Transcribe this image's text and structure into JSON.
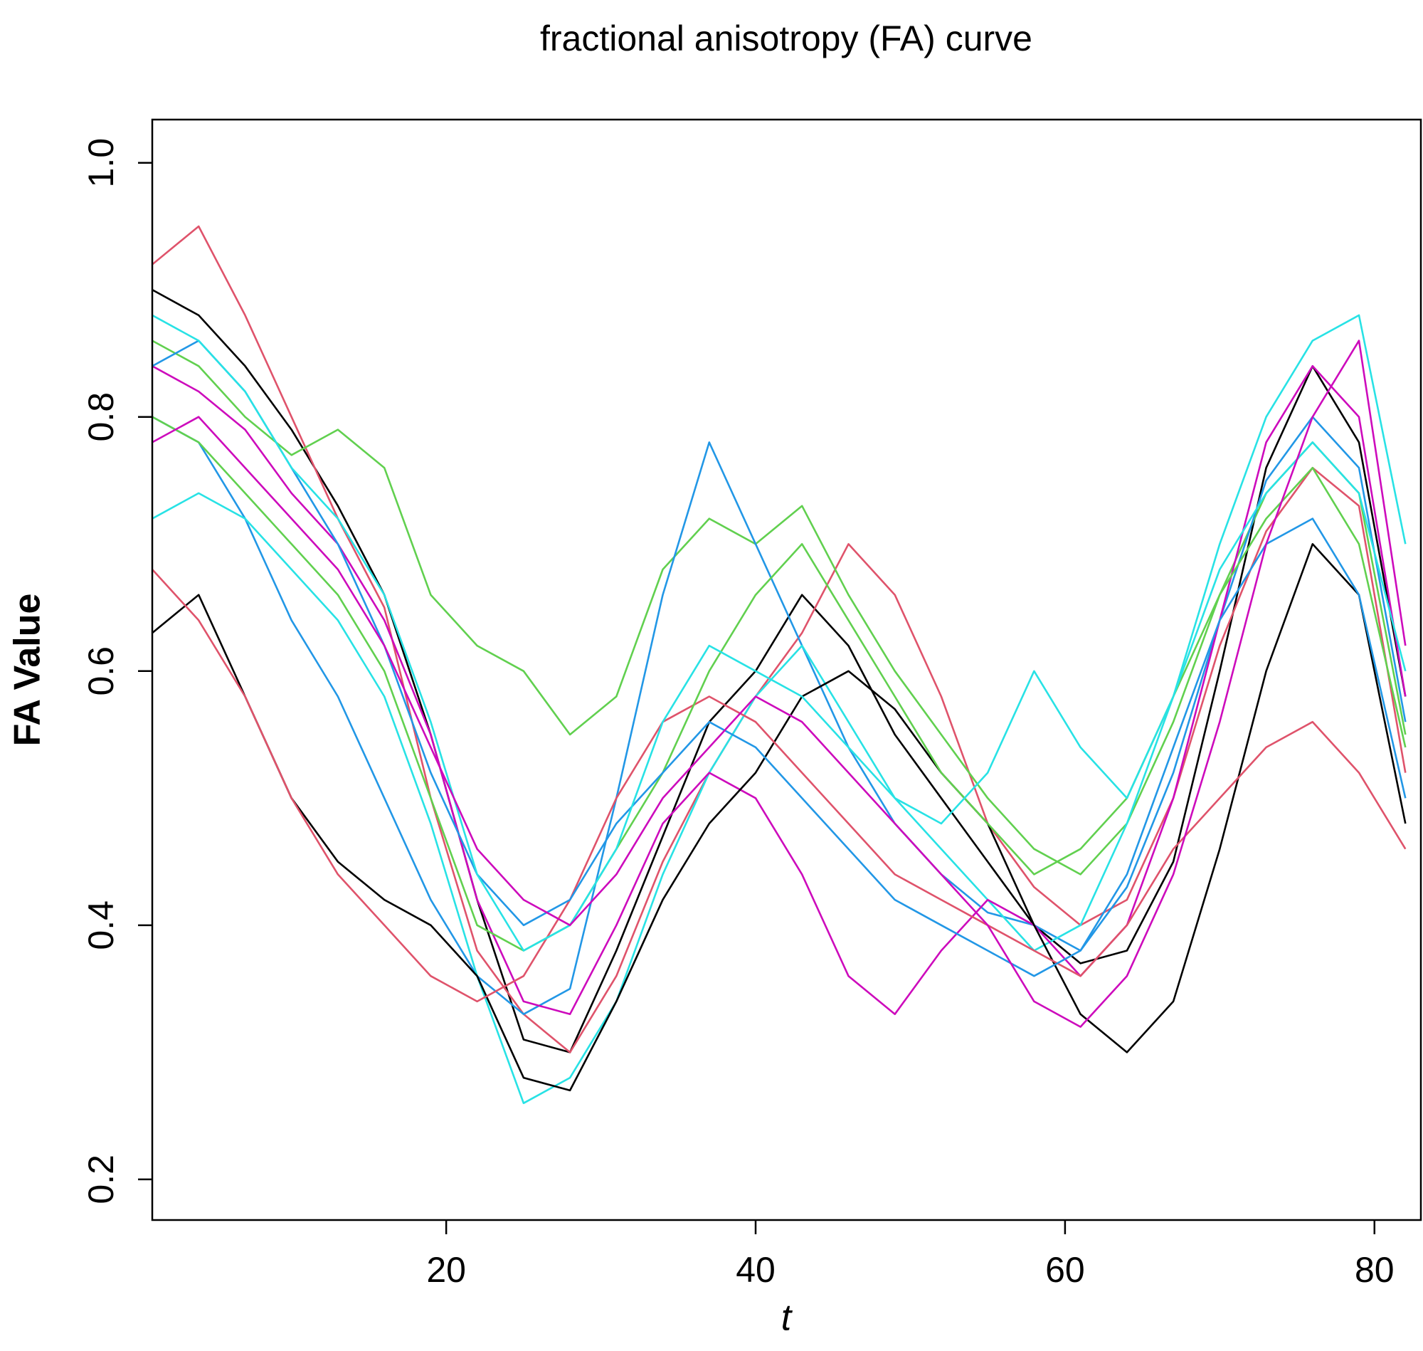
{
  "chart_data": {
    "type": "line",
    "title": "fractional anisotropy (FA) curve",
    "x_label": "t",
    "y_label": "FA Value",
    "x": [
      1,
      4,
      7,
      10,
      13,
      16,
      19,
      22,
      25,
      28,
      31,
      34,
      37,
      40,
      43,
      46,
      49,
      52,
      55,
      58,
      61,
      64,
      67,
      70,
      73,
      76,
      79,
      82
    ],
    "xlim": [
      1,
      83
    ],
    "ylim": [
      0.168,
      1.034
    ],
    "xticks": [
      20,
      40,
      60,
      80
    ],
    "yticks": [
      0.2,
      0.4,
      0.6,
      0.8,
      {
        "value": 1,
        "label": "1.0"
      }
    ],
    "series": [
      {
        "color": "#000000",
        "values": [
          0.9,
          0.88,
          0.84,
          0.79,
          0.73,
          0.66,
          0.55,
          0.42,
          0.31,
          0.3,
          0.38,
          0.47,
          0.56,
          0.6,
          0.66,
          0.62,
          0.55,
          0.5,
          0.45,
          0.4,
          0.37,
          0.38,
          0.45,
          0.6,
          0.76,
          0.84,
          0.78,
          0.58
        ]
      },
      {
        "color": "#DF536B",
        "values": [
          0.92,
          0.95,
          0.88,
          0.8,
          0.72,
          0.65,
          0.5,
          0.38,
          0.33,
          0.3,
          0.36,
          0.45,
          0.52,
          0.58,
          0.63,
          0.7,
          0.66,
          0.58,
          0.48,
          0.43,
          0.4,
          0.42,
          0.5,
          0.62,
          0.71,
          0.76,
          0.73,
          0.52
        ]
      },
      {
        "color": "#61D04F",
        "values": [
          0.86,
          0.84,
          0.8,
          0.77,
          0.79,
          0.76,
          0.66,
          0.62,
          0.6,
          0.55,
          0.58,
          0.68,
          0.72,
          0.7,
          0.73,
          0.66,
          0.6,
          0.55,
          0.5,
          0.46,
          0.44,
          0.48,
          0.56,
          0.66,
          0.74,
          0.78,
          0.74,
          0.55
        ]
      },
      {
        "color": "#2297E6",
        "values": [
          0.8,
          0.78,
          0.72,
          0.64,
          0.58,
          0.5,
          0.42,
          0.36,
          0.33,
          0.35,
          0.5,
          0.66,
          0.78,
          0.7,
          0.62,
          0.54,
          0.48,
          0.44,
          0.41,
          0.4,
          0.38,
          0.43,
          0.52,
          0.64,
          0.75,
          0.8,
          0.76,
          0.56
        ]
      },
      {
        "color": "#28E2E5",
        "values": [
          0.72,
          0.74,
          0.72,
          0.68,
          0.64,
          0.58,
          0.48,
          0.36,
          0.26,
          0.28,
          0.34,
          0.44,
          0.52,
          0.58,
          0.62,
          0.56,
          0.5,
          0.46,
          0.42,
          0.38,
          0.4,
          0.48,
          0.58,
          0.7,
          0.8,
          0.86,
          0.88,
          0.7
        ]
      },
      {
        "color": "#CD0BBC",
        "values": [
          0.84,
          0.82,
          0.79,
          0.74,
          0.7,
          0.64,
          0.55,
          0.42,
          0.34,
          0.33,
          0.4,
          0.48,
          0.52,
          0.5,
          0.44,
          0.36,
          0.33,
          0.38,
          0.42,
          0.4,
          0.36,
          0.4,
          0.5,
          0.64,
          0.78,
          0.84,
          0.8,
          0.58
        ]
      },
      {
        "color": "#000000",
        "values": [
          0.63,
          0.66,
          0.58,
          0.5,
          0.45,
          0.42,
          0.4,
          0.36,
          0.28,
          0.27,
          0.34,
          0.42,
          0.48,
          0.52,
          0.58,
          0.6,
          0.57,
          0.52,
          0.48,
          0.4,
          0.33,
          0.3,
          0.34,
          0.46,
          0.6,
          0.7,
          0.66,
          0.48
        ]
      },
      {
        "color": "#DF536B",
        "values": [
          0.68,
          0.64,
          0.58,
          0.5,
          0.44,
          0.4,
          0.36,
          0.34,
          0.36,
          0.42,
          0.5,
          0.56,
          0.58,
          0.56,
          0.52,
          0.48,
          0.44,
          0.42,
          0.4,
          0.38,
          0.36,
          0.4,
          0.46,
          0.5,
          0.54,
          0.56,
          0.52,
          0.46
        ]
      },
      {
        "color": "#61D04F",
        "values": [
          0.8,
          0.78,
          0.74,
          0.7,
          0.66,
          0.6,
          0.5,
          0.4,
          0.38,
          0.4,
          0.46,
          0.52,
          0.6,
          0.66,
          0.7,
          0.64,
          0.58,
          0.52,
          0.48,
          0.44,
          0.46,
          0.5,
          0.58,
          0.66,
          0.72,
          0.76,
          0.7,
          0.54
        ]
      },
      {
        "color": "#2297E6",
        "values": [
          0.84,
          0.86,
          0.82,
          0.76,
          0.7,
          0.62,
          0.52,
          0.44,
          0.4,
          0.42,
          0.48,
          0.52,
          0.56,
          0.54,
          0.5,
          0.46,
          0.42,
          0.4,
          0.38,
          0.36,
          0.38,
          0.44,
          0.54,
          0.64,
          0.7,
          0.72,
          0.66,
          0.5
        ]
      },
      {
        "color": "#28E2E5",
        "values": [
          0.88,
          0.86,
          0.82,
          0.76,
          0.72,
          0.66,
          0.56,
          0.44,
          0.38,
          0.4,
          0.46,
          0.56,
          0.62,
          0.6,
          0.58,
          0.54,
          0.5,
          0.48,
          0.52,
          0.6,
          0.54,
          0.5,
          0.58,
          0.68,
          0.74,
          0.78,
          0.74,
          0.6
        ]
      },
      {
        "color": "#CD0BBC",
        "values": [
          0.78,
          0.8,
          0.76,
          0.72,
          0.68,
          0.62,
          0.54,
          0.46,
          0.42,
          0.4,
          0.44,
          0.5,
          0.54,
          0.58,
          0.56,
          0.52,
          0.48,
          0.44,
          0.4,
          0.34,
          0.32,
          0.36,
          0.44,
          0.56,
          0.7,
          0.8,
          0.86,
          0.62
        ]
      }
    ]
  }
}
